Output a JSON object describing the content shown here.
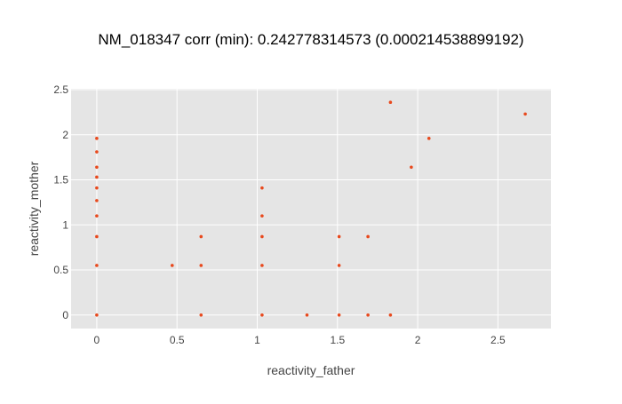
{
  "chart_data": {
    "type": "scatter",
    "title": "NM_018347 corr (min): 0.242778314573 (0.000214538899192)",
    "xlabel": "reactivity_father",
    "ylabel": "reactivity_mother",
    "xlim": [
      -0.16,
      2.83
    ],
    "ylim": [
      -0.15,
      2.51
    ],
    "xticks": [
      0,
      0.5,
      1,
      1.5,
      2,
      2.5
    ],
    "xtick_labels": [
      "0",
      "0.5",
      "1",
      "1.5",
      "2",
      "2.5"
    ],
    "yticks": [
      0,
      0.5,
      1,
      1.5,
      2,
      2.5
    ],
    "ytick_labels": [
      "0",
      "0.5",
      "1",
      "1.5",
      "2",
      "2.5"
    ],
    "grid": true,
    "marker_color": "#e8491d",
    "background_color": "#e5e5e5",
    "points": [
      {
        "x": 0,
        "y": 1.96
      },
      {
        "x": 0,
        "y": 1.81
      },
      {
        "x": 0,
        "y": 1.64
      },
      {
        "x": 0,
        "y": 1.53
      },
      {
        "x": 0,
        "y": 1.41
      },
      {
        "x": 0,
        "y": 1.27
      },
      {
        "x": 0,
        "y": 1.1
      },
      {
        "x": 0,
        "y": 0.87
      },
      {
        "x": 0,
        "y": 0.55
      },
      {
        "x": 0,
        "y": 0
      },
      {
        "x": 0.47,
        "y": 0.55
      },
      {
        "x": 0.65,
        "y": 0.87
      },
      {
        "x": 0.65,
        "y": 0.55
      },
      {
        "x": 0.65,
        "y": 0
      },
      {
        "x": 1.03,
        "y": 1.41
      },
      {
        "x": 1.03,
        "y": 1.1
      },
      {
        "x": 1.03,
        "y": 0.87
      },
      {
        "x": 1.03,
        "y": 0.55
      },
      {
        "x": 1.03,
        "y": 0
      },
      {
        "x": 1.31,
        "y": 0
      },
      {
        "x": 1.51,
        "y": 0.87
      },
      {
        "x": 1.51,
        "y": 0.55
      },
      {
        "x": 1.51,
        "y": 0
      },
      {
        "x": 1.69,
        "y": 0.87
      },
      {
        "x": 1.69,
        "y": 0
      },
      {
        "x": 1.83,
        "y": 2.36
      },
      {
        "x": 1.83,
        "y": 0
      },
      {
        "x": 1.96,
        "y": 1.64
      },
      {
        "x": 2.07,
        "y": 1.96
      },
      {
        "x": 2.67,
        "y": 2.23
      }
    ]
  }
}
